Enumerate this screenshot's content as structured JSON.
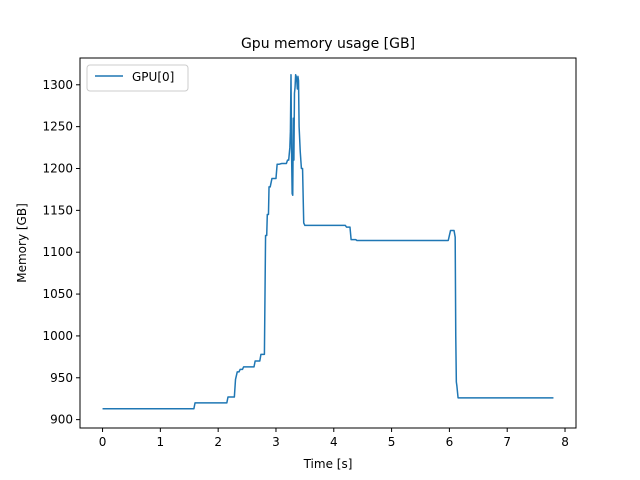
{
  "chart_data": {
    "type": "line",
    "title": "Gpu memory usage [GB]",
    "xlabel": "Time [s]",
    "ylabel": "Memory [GB]",
    "xlim": [
      -0.39,
      8.19
    ],
    "ylim": [
      890,
      1332
    ],
    "x_ticks": [
      0,
      1,
      2,
      3,
      4,
      5,
      6,
      7,
      8
    ],
    "y_ticks": [
      900,
      950,
      1000,
      1050,
      1100,
      1150,
      1200,
      1250,
      1300
    ],
    "grid": false,
    "legend_position": "upper-left",
    "series": [
      {
        "name": "GPU[0]",
        "color": "#1f77b4",
        "x": [
          0,
          1.58,
          1.6,
          2.15,
          2.17,
          2.28,
          2.3,
          2.33,
          2.36,
          2.38,
          2.42,
          2.44,
          2.62,
          2.64,
          2.72,
          2.74,
          2.8,
          2.82,
          2.84,
          2.85,
          2.87,
          2.88,
          2.9,
          2.93,
          3.0,
          3.02,
          3.05,
          3.1,
          3.13,
          3.18,
          3.2,
          3.22,
          3.24,
          3.25,
          3.26,
          3.27,
          3.28,
          3.29,
          3.3,
          3.31,
          3.32,
          3.33,
          3.34,
          3.35,
          3.36,
          3.37,
          3.38,
          3.39,
          3.4,
          3.42,
          3.44,
          3.46,
          3.48,
          3.5,
          4.2,
          4.22,
          4.28,
          4.3,
          4.38,
          4.4,
          5.98,
          6.0,
          6.02,
          6.08,
          6.1,
          6.11,
          6.12,
          6.13,
          6.15,
          7.8
        ],
        "values": [
          913,
          913,
          920,
          920,
          927,
          927,
          948,
          957,
          957,
          960,
          960,
          963,
          963,
          970,
          970,
          978,
          978,
          1120,
          1120,
          1145,
          1145,
          1178,
          1178,
          1188,
          1188,
          1205,
          1205,
          1206,
          1206,
          1206,
          1210,
          1210,
          1225,
          1245,
          1312,
          1218,
          1170,
          1168,
          1260,
          1210,
          1290,
          1297,
          1312,
          1310,
          1305,
          1295,
          1310,
          1305,
          1250,
          1220,
          1200,
          1200,
          1135,
          1132,
          1132,
          1130,
          1130,
          1115,
          1115,
          1114,
          1114,
          1120,
          1126,
          1126,
          1118,
          1000,
          945,
          940,
          926,
          926
        ]
      }
    ]
  }
}
